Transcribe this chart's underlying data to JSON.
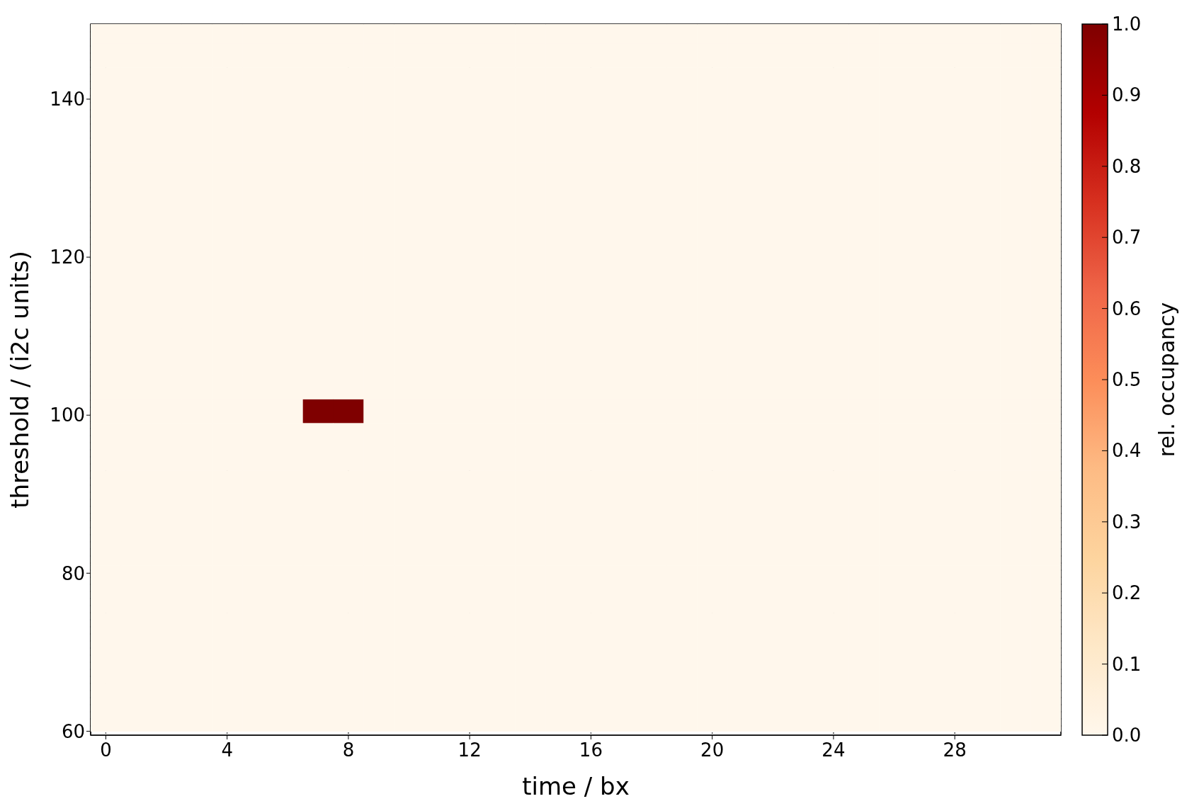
{
  "chart_data": {
    "type": "heatmap",
    "xlabel": "time / bx",
    "ylabel": "threshold / (i2c units)",
    "clabel": "rel. occupancy",
    "x": [
      0,
      1,
      2,
      3,
      4,
      5,
      6,
      7,
      8,
      9,
      10,
      11,
      12,
      13,
      14,
      15,
      16,
      17,
      18,
      19,
      20,
      21,
      22,
      23,
      24,
      25,
      26,
      27,
      28,
      29,
      30,
      31
    ],
    "y": [
      148.5,
      145.5,
      142.5,
      139.5,
      136.5,
      133.5,
      130.5,
      127.5,
      124.5,
      121.5,
      118.5,
      115.5,
      112.5,
      109.5,
      106.5,
      103.5,
      100.5,
      97.5,
      94.5,
      91.5,
      88.5,
      85.5,
      82.5,
      79.5,
      76.5,
      73.5,
      70.5,
      67.5,
      64.5,
      61.5
    ],
    "cells": [
      [
        0,
        0,
        0,
        0,
        0,
        0,
        0,
        0,
        0,
        0,
        0,
        0,
        0,
        0,
        0,
        0,
        0,
        0,
        0,
        0,
        0,
        0,
        0,
        0,
        0,
        0,
        0,
        0,
        0,
        0,
        0,
        0
      ],
      [
        0,
        0,
        0,
        0,
        0,
        0,
        0,
        0,
        0,
        0,
        0,
        0,
        0,
        0,
        0,
        0,
        0,
        0,
        0,
        0,
        0,
        0,
        0,
        0,
        0,
        0,
        0,
        0,
        0,
        0,
        0,
        0
      ],
      [
        0,
        0,
        0,
        0,
        0,
        0,
        0,
        0,
        0,
        0,
        0,
        0,
        0,
        0,
        0,
        0,
        0,
        0,
        0,
        0,
        0,
        0,
        0,
        0,
        0,
        0,
        0,
        0,
        0,
        0,
        0,
        0
      ],
      [
        0,
        0,
        0,
        0,
        0,
        0,
        0,
        0,
        0,
        0,
        0,
        0,
        0,
        0,
        0,
        0,
        0,
        0,
        0,
        0,
        0,
        0,
        0,
        0,
        0,
        0,
        0,
        0,
        0,
        0,
        0,
        0
      ],
      [
        0,
        0,
        0,
        0,
        0,
        0,
        0,
        0,
        0,
        0,
        0,
        0,
        0,
        0,
        0,
        0,
        0,
        0,
        0,
        0,
        0,
        0,
        0,
        0,
        0,
        0,
        0,
        0,
        0,
        0,
        0,
        0
      ],
      [
        0,
        0,
        0,
        0,
        0,
        0,
        0,
        0,
        0,
        0,
        0,
        0,
        0,
        0,
        0,
        0,
        0,
        0,
        0,
        0,
        0,
        0,
        0,
        0,
        0,
        0,
        0,
        0,
        0,
        0,
        0,
        0
      ],
      [
        0,
        0,
        0,
        0,
        0,
        0,
        0,
        0,
        0,
        0,
        0,
        0,
        0,
        0,
        0,
        0,
        0,
        0,
        0,
        0,
        0,
        0,
        0,
        0,
        0,
        0,
        0,
        0,
        0,
        0,
        0,
        0
      ],
      [
        0,
        0,
        0,
        0,
        0,
        0,
        0,
        0,
        0,
        0,
        0,
        0,
        0,
        0,
        0,
        0,
        0,
        0,
        0,
        0,
        0,
        0,
        0,
        0,
        0,
        0,
        0,
        0,
        0,
        0,
        0,
        0
      ],
      [
        0,
        0,
        0,
        0,
        0,
        0,
        0,
        0,
        0,
        0,
        0,
        0,
        0,
        0,
        0,
        0,
        0,
        0,
        0,
        0,
        0,
        0,
        0,
        0,
        0,
        0,
        0,
        0,
        0,
        0,
        0,
        0
      ],
      [
        0,
        0,
        0,
        0,
        0,
        0,
        0,
        0,
        0,
        0,
        0,
        0,
        0,
        0,
        0,
        0,
        0,
        0,
        0,
        0,
        0,
        0,
        0,
        0,
        0,
        0,
        0,
        0,
        0,
        0,
        0,
        0
      ],
      [
        0,
        0,
        0,
        0,
        0,
        0,
        0,
        0,
        0,
        0,
        0,
        0,
        0,
        0,
        0,
        0,
        0,
        0,
        0,
        0,
        0,
        0,
        0,
        0,
        0,
        0,
        0,
        0,
        0,
        0,
        0,
        0
      ],
      [
        0,
        0,
        0,
        0,
        0,
        0,
        0,
        0,
        0,
        0,
        0,
        0,
        0,
        0,
        0,
        0,
        0,
        0,
        0,
        0,
        0,
        0,
        0,
        0,
        0,
        0,
        0,
        0,
        0,
        0,
        0,
        0
      ],
      [
        0,
        0,
        0,
        0,
        0,
        0,
        0,
        0,
        0,
        0,
        0,
        0,
        0,
        0,
        0,
        0,
        0,
        0,
        0,
        0,
        0,
        0,
        0,
        0,
        0,
        0,
        0,
        0,
        0,
        0,
        0,
        0
      ],
      [
        0,
        0,
        0,
        0,
        0,
        0,
        0,
        0,
        0,
        0,
        0,
        0,
        0,
        0,
        0,
        0,
        0,
        0,
        0,
        0,
        0,
        0,
        0,
        0,
        0,
        0,
        0,
        0,
        0,
        0,
        0,
        0
      ],
      [
        0,
        0,
        0,
        0,
        0,
        0,
        0,
        0,
        0,
        0,
        0,
        0,
        0,
        0,
        0,
        0,
        0,
        0,
        0,
        0,
        0,
        0,
        0,
        0,
        0,
        0,
        0,
        0,
        0,
        0,
        0,
        0
      ],
      [
        0,
        0,
        0,
        0,
        0,
        0,
        0,
        0,
        0,
        0,
        0,
        0,
        0,
        0,
        0,
        0,
        0,
        0,
        0,
        0,
        0,
        0,
        0,
        0,
        0,
        0,
        0,
        0,
        0,
        0,
        0,
        0
      ],
      [
        0,
        0,
        0,
        0,
        0,
        0,
        0,
        1,
        1,
        0,
        0,
        0,
        0,
        0,
        0,
        0,
        0,
        0,
        0,
        0,
        0,
        0,
        0,
        0,
        0,
        0,
        0,
        0,
        0,
        0,
        0,
        0
      ],
      [
        0,
        0,
        0,
        0,
        0,
        0,
        0,
        0,
        0,
        0,
        0,
        0,
        0,
        0,
        0,
        0,
        0,
        0,
        0,
        0,
        0,
        0,
        0,
        0,
        0,
        0,
        0,
        0,
        0,
        0,
        0,
        0
      ],
      [
        0,
        0,
        0,
        0,
        0,
        0,
        0,
        0,
        0,
        0,
        0,
        0,
        0,
        0,
        0,
        0,
        0,
        0,
        0,
        0,
        0,
        0,
        0,
        0,
        0,
        0,
        0,
        0,
        0,
        0,
        0,
        0
      ],
      [
        0,
        0,
        0,
        0,
        0,
        0,
        0,
        0,
        0,
        0,
        0,
        0,
        0,
        0,
        0,
        0,
        0,
        0,
        0,
        0,
        0,
        0,
        0,
        0,
        0,
        0,
        0,
        0,
        0,
        0,
        0,
        0
      ],
      [
        0,
        0,
        0,
        0,
        0,
        0,
        0,
        0,
        0,
        0,
        0,
        0,
        0,
        0,
        0,
        0,
        0,
        0,
        0,
        0,
        0,
        0,
        0,
        0,
        0,
        0,
        0,
        0,
        0,
        0,
        0,
        0
      ],
      [
        0,
        0,
        0,
        0,
        0,
        0,
        0,
        0,
        0,
        0,
        0,
        0,
        0,
        0,
        0,
        0,
        0,
        0,
        0,
        0,
        0,
        0,
        0,
        0,
        0,
        0,
        0,
        0,
        0,
        0,
        0,
        0
      ],
      [
        0,
        0,
        0,
        0,
        0,
        0,
        0,
        0,
        0,
        0,
        0,
        0,
        0,
        0,
        0,
        0,
        0,
        0,
        0,
        0,
        0,
        0,
        0,
        0,
        0,
        0,
        0,
        0,
        0,
        0,
        0,
        0
      ],
      [
        0,
        0,
        0,
        0,
        0,
        0,
        0,
        0,
        0,
        0,
        0,
        0,
        0,
        0,
        0,
        0,
        0,
        0,
        0,
        0,
        0,
        0,
        0,
        0,
        0,
        0,
        0,
        0,
        0,
        0,
        0,
        0
      ],
      [
        0,
        0,
        0,
        0,
        0,
        0,
        0,
        0,
        0,
        0,
        0,
        0,
        0,
        0,
        0,
        0,
        0,
        0,
        0,
        0,
        0,
        0,
        0,
        0,
        0,
        0,
        0,
        0,
        0,
        0,
        0,
        0
      ],
      [
        0,
        0,
        0,
        0,
        0,
        0,
        0,
        0,
        0,
        0,
        0,
        0,
        0,
        0,
        0,
        0,
        0,
        0,
        0,
        0,
        0,
        0,
        0,
        0,
        0,
        0,
        0,
        0,
        0,
        0,
        0,
        0
      ],
      [
        0,
        0,
        0,
        0,
        0,
        0,
        0,
        0,
        0,
        0,
        0,
        0,
        0,
        0,
        0,
        0,
        0,
        0,
        0,
        0,
        0,
        0,
        0,
        0,
        0,
        0,
        0,
        0,
        0,
        0,
        0,
        0
      ],
      [
        0,
        0,
        0,
        0,
        0,
        0,
        0,
        0,
        0,
        0,
        0,
        0,
        0,
        0,
        0,
        0,
        0,
        0,
        0,
        0,
        0,
        0,
        0,
        0,
        0,
        0,
        0,
        0,
        0,
        0,
        0,
        0
      ],
      [
        0,
        0,
        0,
        0,
        0,
        0,
        0,
        0,
        0,
        0,
        0,
        0,
        0,
        0,
        0,
        0,
        0,
        0,
        0,
        0,
        0,
        0,
        0,
        0,
        0,
        0,
        0,
        0,
        0,
        0,
        0,
        0
      ],
      [
        0,
        0,
        0,
        0,
        0,
        0,
        0,
        0,
        0,
        0,
        0,
        0,
        0,
        0,
        0,
        0,
        0,
        0,
        0,
        0,
        0,
        0,
        0,
        0,
        0,
        0,
        0,
        0,
        0,
        0,
        0,
        0
      ]
    ],
    "xlim": [
      -0.5,
      31.5
    ],
    "xticks": [
      0,
      4,
      8,
      12,
      16,
      20,
      24,
      28
    ],
    "ylim": [
      59.5,
      149.5
    ],
    "yticks": [
      60,
      80,
      100,
      120,
      140
    ],
    "clim": [
      0,
      1
    ],
    "cticks": [
      {
        "value": 0,
        "label": "0.0"
      },
      {
        "value": 0.1,
        "label": "0.1"
      },
      {
        "value": 0.2,
        "label": "0.2"
      },
      {
        "value": 0.3,
        "label": "0.3"
      },
      {
        "value": 0.4,
        "label": "0.4"
      },
      {
        "value": 0.5,
        "label": "0.5"
      },
      {
        "value": 0.6,
        "label": "0.6"
      },
      {
        "value": 0.7,
        "label": "0.7"
      },
      {
        "value": 0.8,
        "label": "0.8"
      },
      {
        "value": 0.9,
        "label": "0.9"
      },
      {
        "value": 1,
        "label": "1.0"
      }
    ],
    "grid": "x"
  }
}
